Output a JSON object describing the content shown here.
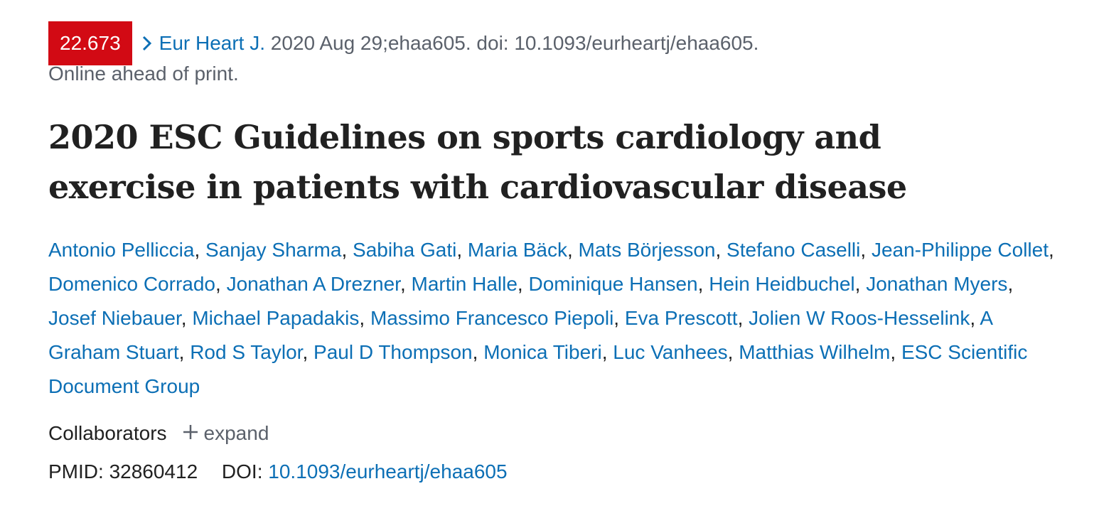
{
  "citation": {
    "impact_factor": "22.673",
    "journal": "Eur Heart J.",
    "details": " 2020 Aug 29;ehaa605. doi: 10.1093/eurheartj/ehaa605.",
    "status": "Online ahead of print."
  },
  "colors": {
    "badge": "#d20a14",
    "link": "#0c6fb5"
  },
  "title": "2020 ESC Guidelines on sports cardiology and exercise in patients with cardiovascular disease",
  "authors": [
    "Antonio Pelliccia",
    "Sanjay Sharma",
    "Sabiha Gati",
    "Maria Bäck",
    "Mats Börjesson",
    "Stefano Caselli",
    "Jean-Philippe Collet",
    "Domenico Corrado",
    "Jonathan A Drezner",
    "Martin Halle",
    "Dominique Hansen",
    "Hein Heidbuchel",
    "Jonathan Myers",
    "Josef Niebauer",
    "Michael Papadakis",
    "Massimo Francesco Piepoli",
    "Eva Prescott",
    "Jolien W Roos-Hesselink",
    "A Graham Stuart",
    "Rod S Taylor",
    "Paul D Thompson",
    "Monica Tiberi",
    "Luc Vanhees",
    "Matthias Wilhelm",
    "ESC Scientific Document Group"
  ],
  "collaborators": {
    "label": "Collaborators",
    "expand": "expand",
    "icon": "plus-icon"
  },
  "ids": {
    "pmid_label": "PMID:",
    "pmid": "32860412",
    "doi_label": "DOI:",
    "doi": "10.1093/eurheartj/ehaa605"
  }
}
